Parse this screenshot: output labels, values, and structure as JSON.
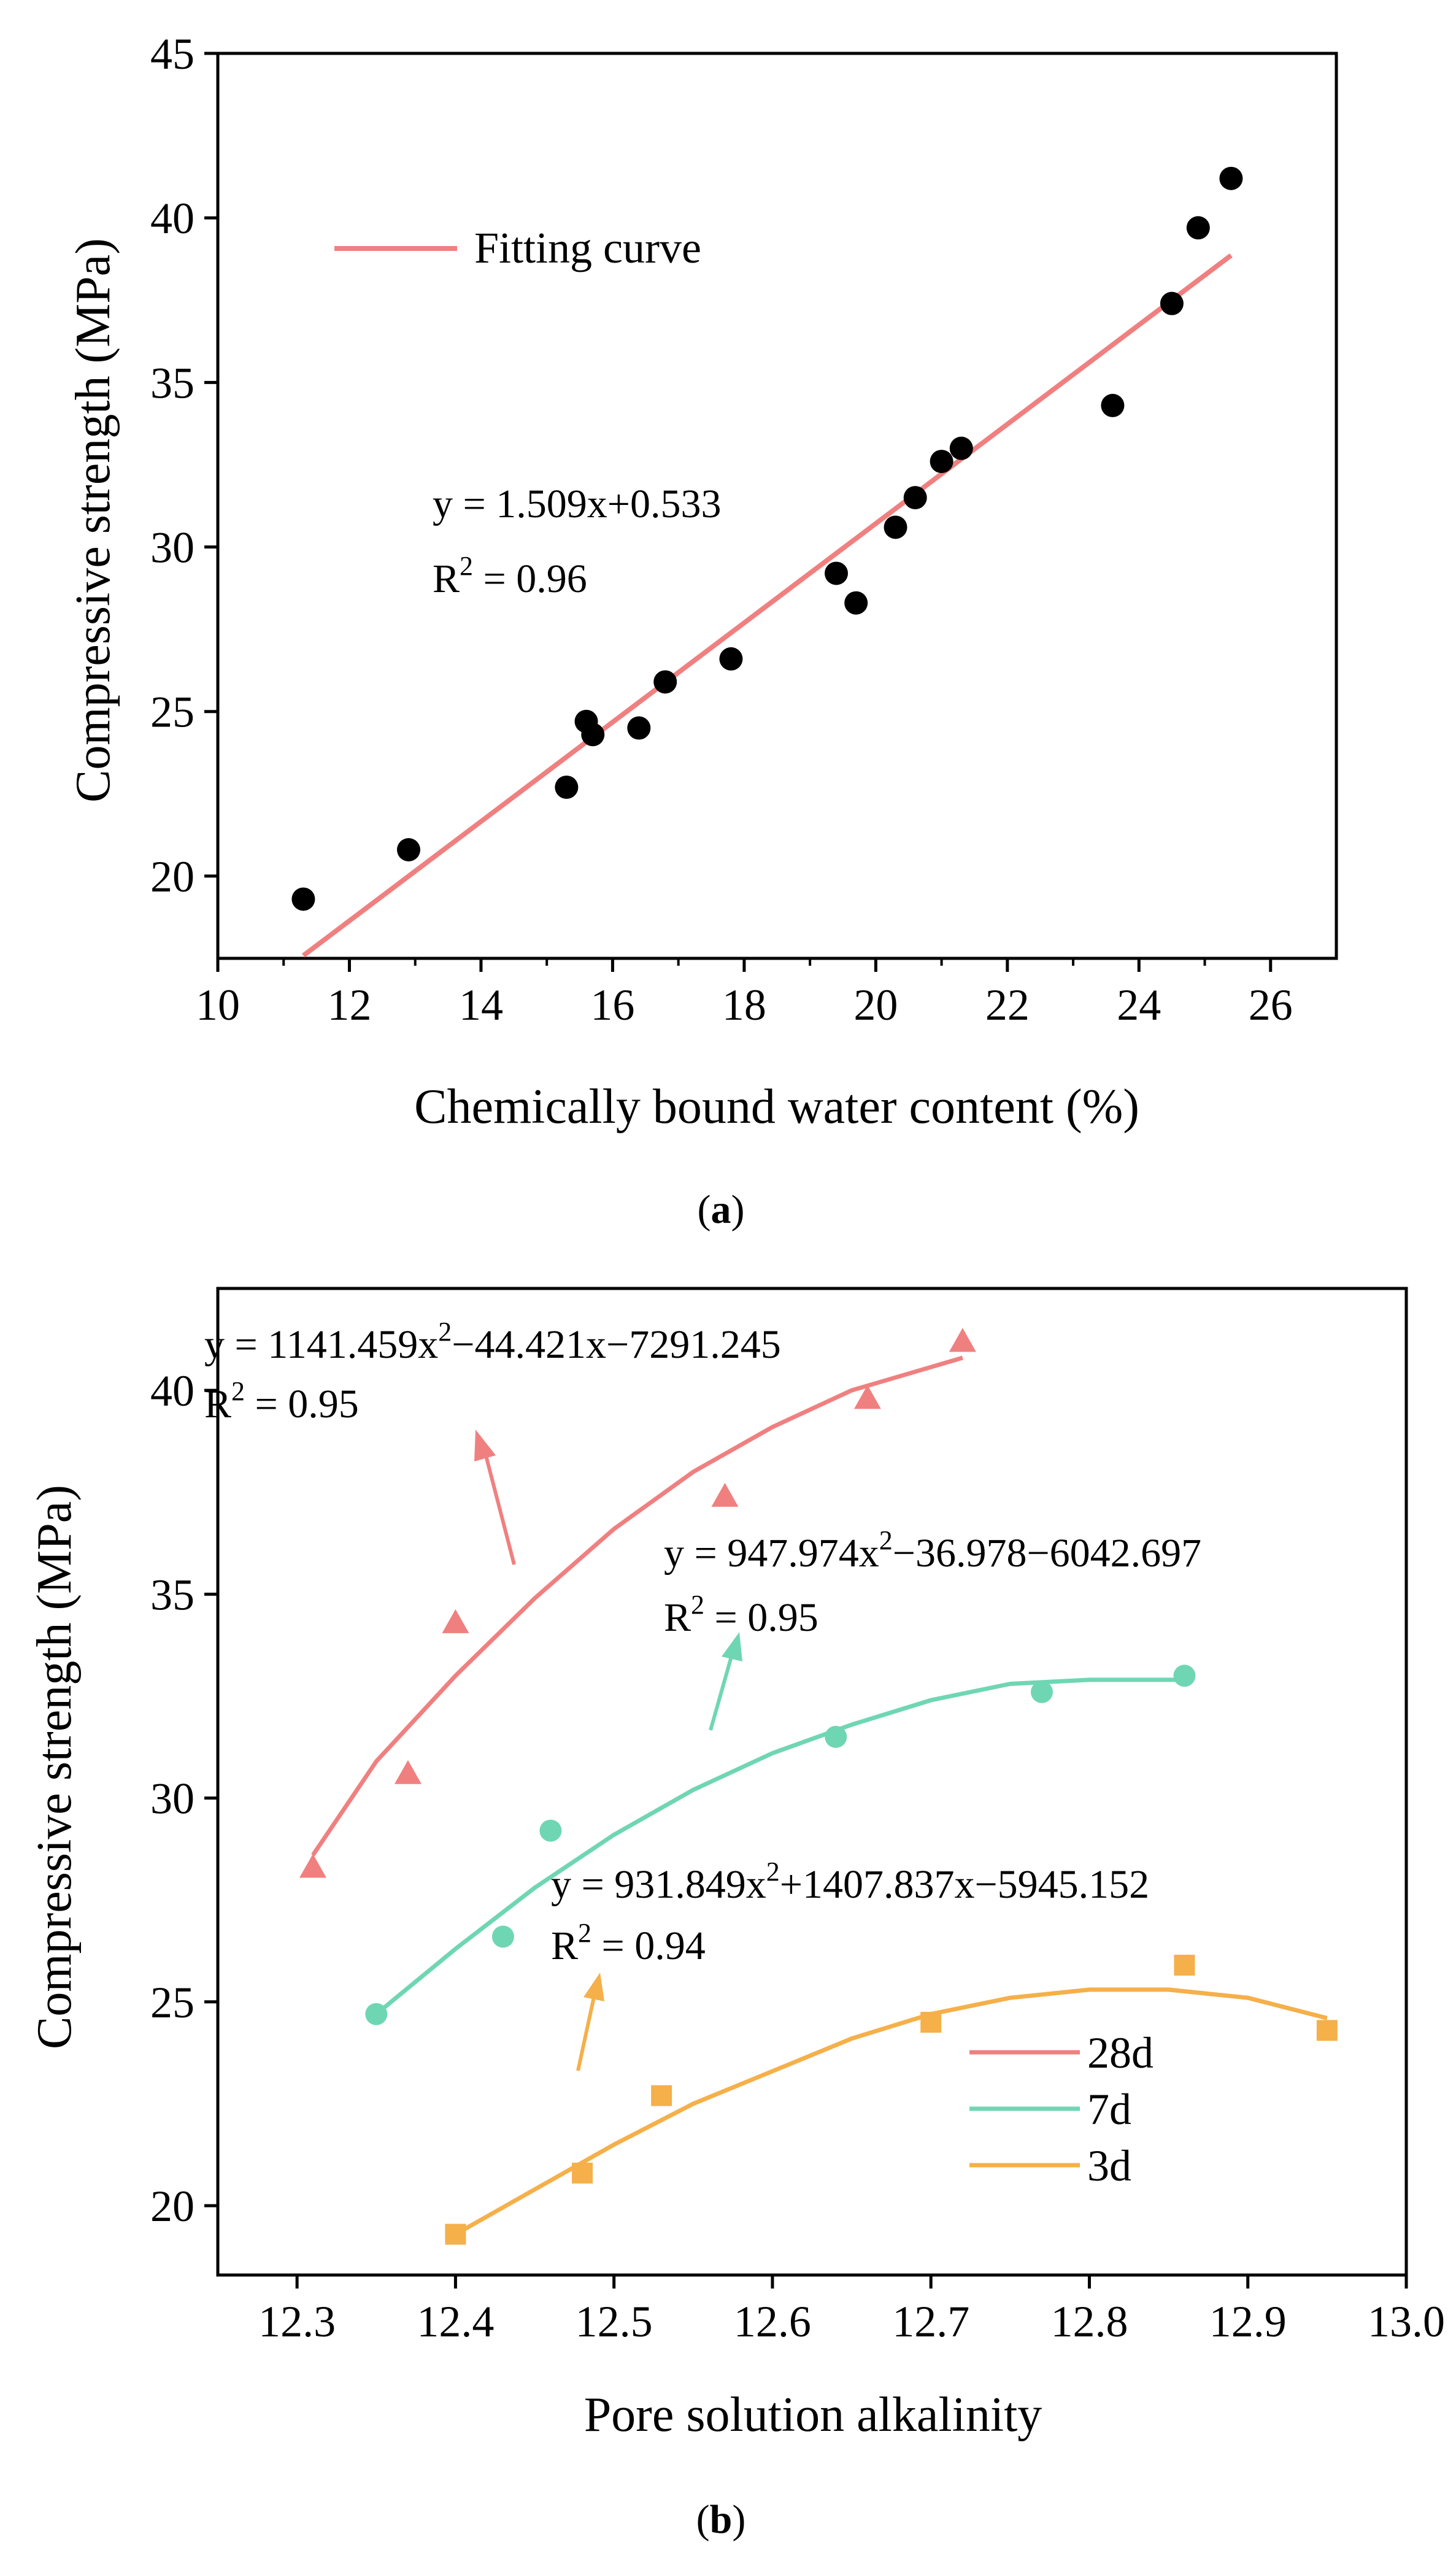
{
  "chart_data": [
    {
      "panel": "a",
      "type": "scatter",
      "caption": "(a)",
      "xlabel": "Chemically bound water content (%)",
      "ylabel": "Compressive strength (MPa)",
      "xlim": [
        10,
        27
      ],
      "ylim": [
        17.5,
        45
      ],
      "xticks": [
        10,
        12,
        14,
        16,
        18,
        20,
        22,
        24,
        26
      ],
      "yticks": [
        20,
        25,
        30,
        35,
        40,
        45
      ],
      "points": {
        "x": [
          11.3,
          12.9,
          15.3,
          15.6,
          15.7,
          16.4,
          16.8,
          17.8,
          19.4,
          19.7,
          20.3,
          20.6,
          21.0,
          21.3,
          23.6,
          24.5,
          24.9,
          25.4
        ],
        "y": [
          19.3,
          20.8,
          22.7,
          24.7,
          24.3,
          24.5,
          25.9,
          26.6,
          29.2,
          28.3,
          30.6,
          31.5,
          32.6,
          33.0,
          34.3,
          37.4,
          39.7,
          41.2
        ],
        "color": "#000000"
      },
      "fit": {
        "slope": 1.509,
        "intercept": 0.533,
        "x_range": [
          11.3,
          25.4
        ],
        "color": "#F08080"
      },
      "legend": [
        {
          "label": "Fitting curve",
          "color": "#F08080"
        }
      ],
      "annotation": {
        "equation": "y = 1.509x+0.533",
        "r2_prefix": "R",
        "r2_sup": "2",
        "r2_value": " = 0.96"
      }
    },
    {
      "panel": "b",
      "type": "scatter",
      "caption": "(b)",
      "xlabel": "Pore solution alkalinity",
      "ylabel": "Compressive strength (MPa)",
      "xlim": [
        12.25,
        13.0
      ],
      "ylim": [
        18.3,
        42.5
      ],
      "xticks": [
        12.3,
        12.4,
        12.5,
        12.6,
        12.7,
        12.8,
        12.9,
        13.0
      ],
      "yticks": [
        20,
        25,
        30,
        35,
        40
      ],
      "series": [
        {
          "name": "28d",
          "marker": "triangle",
          "color": "#F08080",
          "x": [
            12.31,
            12.37,
            12.4,
            12.57,
            12.66,
            12.72
          ],
          "y": [
            28.3,
            30.6,
            34.3,
            37.4,
            39.8,
            41.2
          ],
          "curve": [
            [
              12.31,
              28.6
            ],
            [
              12.35,
              30.9
            ],
            [
              12.4,
              33.0
            ],
            [
              12.45,
              34.9
            ],
            [
              12.5,
              36.6
            ],
            [
              12.55,
              38.0
            ],
            [
              12.6,
              39.1
            ],
            [
              12.65,
              40.0
            ],
            [
              12.72,
              40.8
            ]
          ],
          "equation": {
            "pre": "y = 1141.459x",
            "sup": "2",
            "post": "−44.421x−7291.245"
          },
          "r2": {
            "prefix": "R",
            "sup": "2",
            "value": " = 0.95"
          }
        },
        {
          "name": "7d",
          "marker": "circle",
          "color": "#6FD6B4",
          "x": [
            12.35,
            12.43,
            12.46,
            12.64,
            12.77,
            12.86
          ],
          "y": [
            24.7,
            26.6,
            29.2,
            31.5,
            32.6,
            33.0
          ],
          "curve": [
            [
              12.35,
              24.7
            ],
            [
              12.4,
              26.3
            ],
            [
              12.45,
              27.8
            ],
            [
              12.5,
              29.1
            ],
            [
              12.55,
              30.2
            ],
            [
              12.6,
              31.1
            ],
            [
              12.65,
              31.8
            ],
            [
              12.7,
              32.4
            ],
            [
              12.75,
              32.8
            ],
            [
              12.8,
              32.9
            ],
            [
              12.86,
              32.9
            ]
          ],
          "equation": {
            "pre": "y = 947.974x",
            "sup": "2",
            "post": "−36.978−6042.697"
          },
          "r2": {
            "prefix": "R",
            "sup": "2",
            "value": " = 0.95"
          }
        },
        {
          "name": "3d",
          "marker": "square",
          "color": "#F5B04A",
          "x": [
            12.4,
            12.48,
            12.53,
            12.7,
            12.86,
            12.95
          ],
          "y": [
            19.3,
            20.8,
            22.7,
            24.5,
            25.9,
            24.3
          ],
          "curve": [
            [
              12.4,
              19.3
            ],
            [
              12.45,
              20.4
            ],
            [
              12.5,
              21.5
            ],
            [
              12.55,
              22.5
            ],
            [
              12.6,
              23.3
            ],
            [
              12.65,
              24.1
            ],
            [
              12.7,
              24.7
            ],
            [
              12.75,
              25.1
            ],
            [
              12.8,
              25.3
            ],
            [
              12.85,
              25.3
            ],
            [
              12.9,
              25.1
            ],
            [
              12.95,
              24.6
            ]
          ],
          "equation": {
            "pre": "y = 931.849x",
            "sup": "2",
            "post": "+1407.837x−5945.152"
          },
          "r2": {
            "prefix": "R",
            "sup": "2",
            "value": " = 0.94"
          }
        }
      ],
      "legend_position": "bottom-right"
    }
  ]
}
